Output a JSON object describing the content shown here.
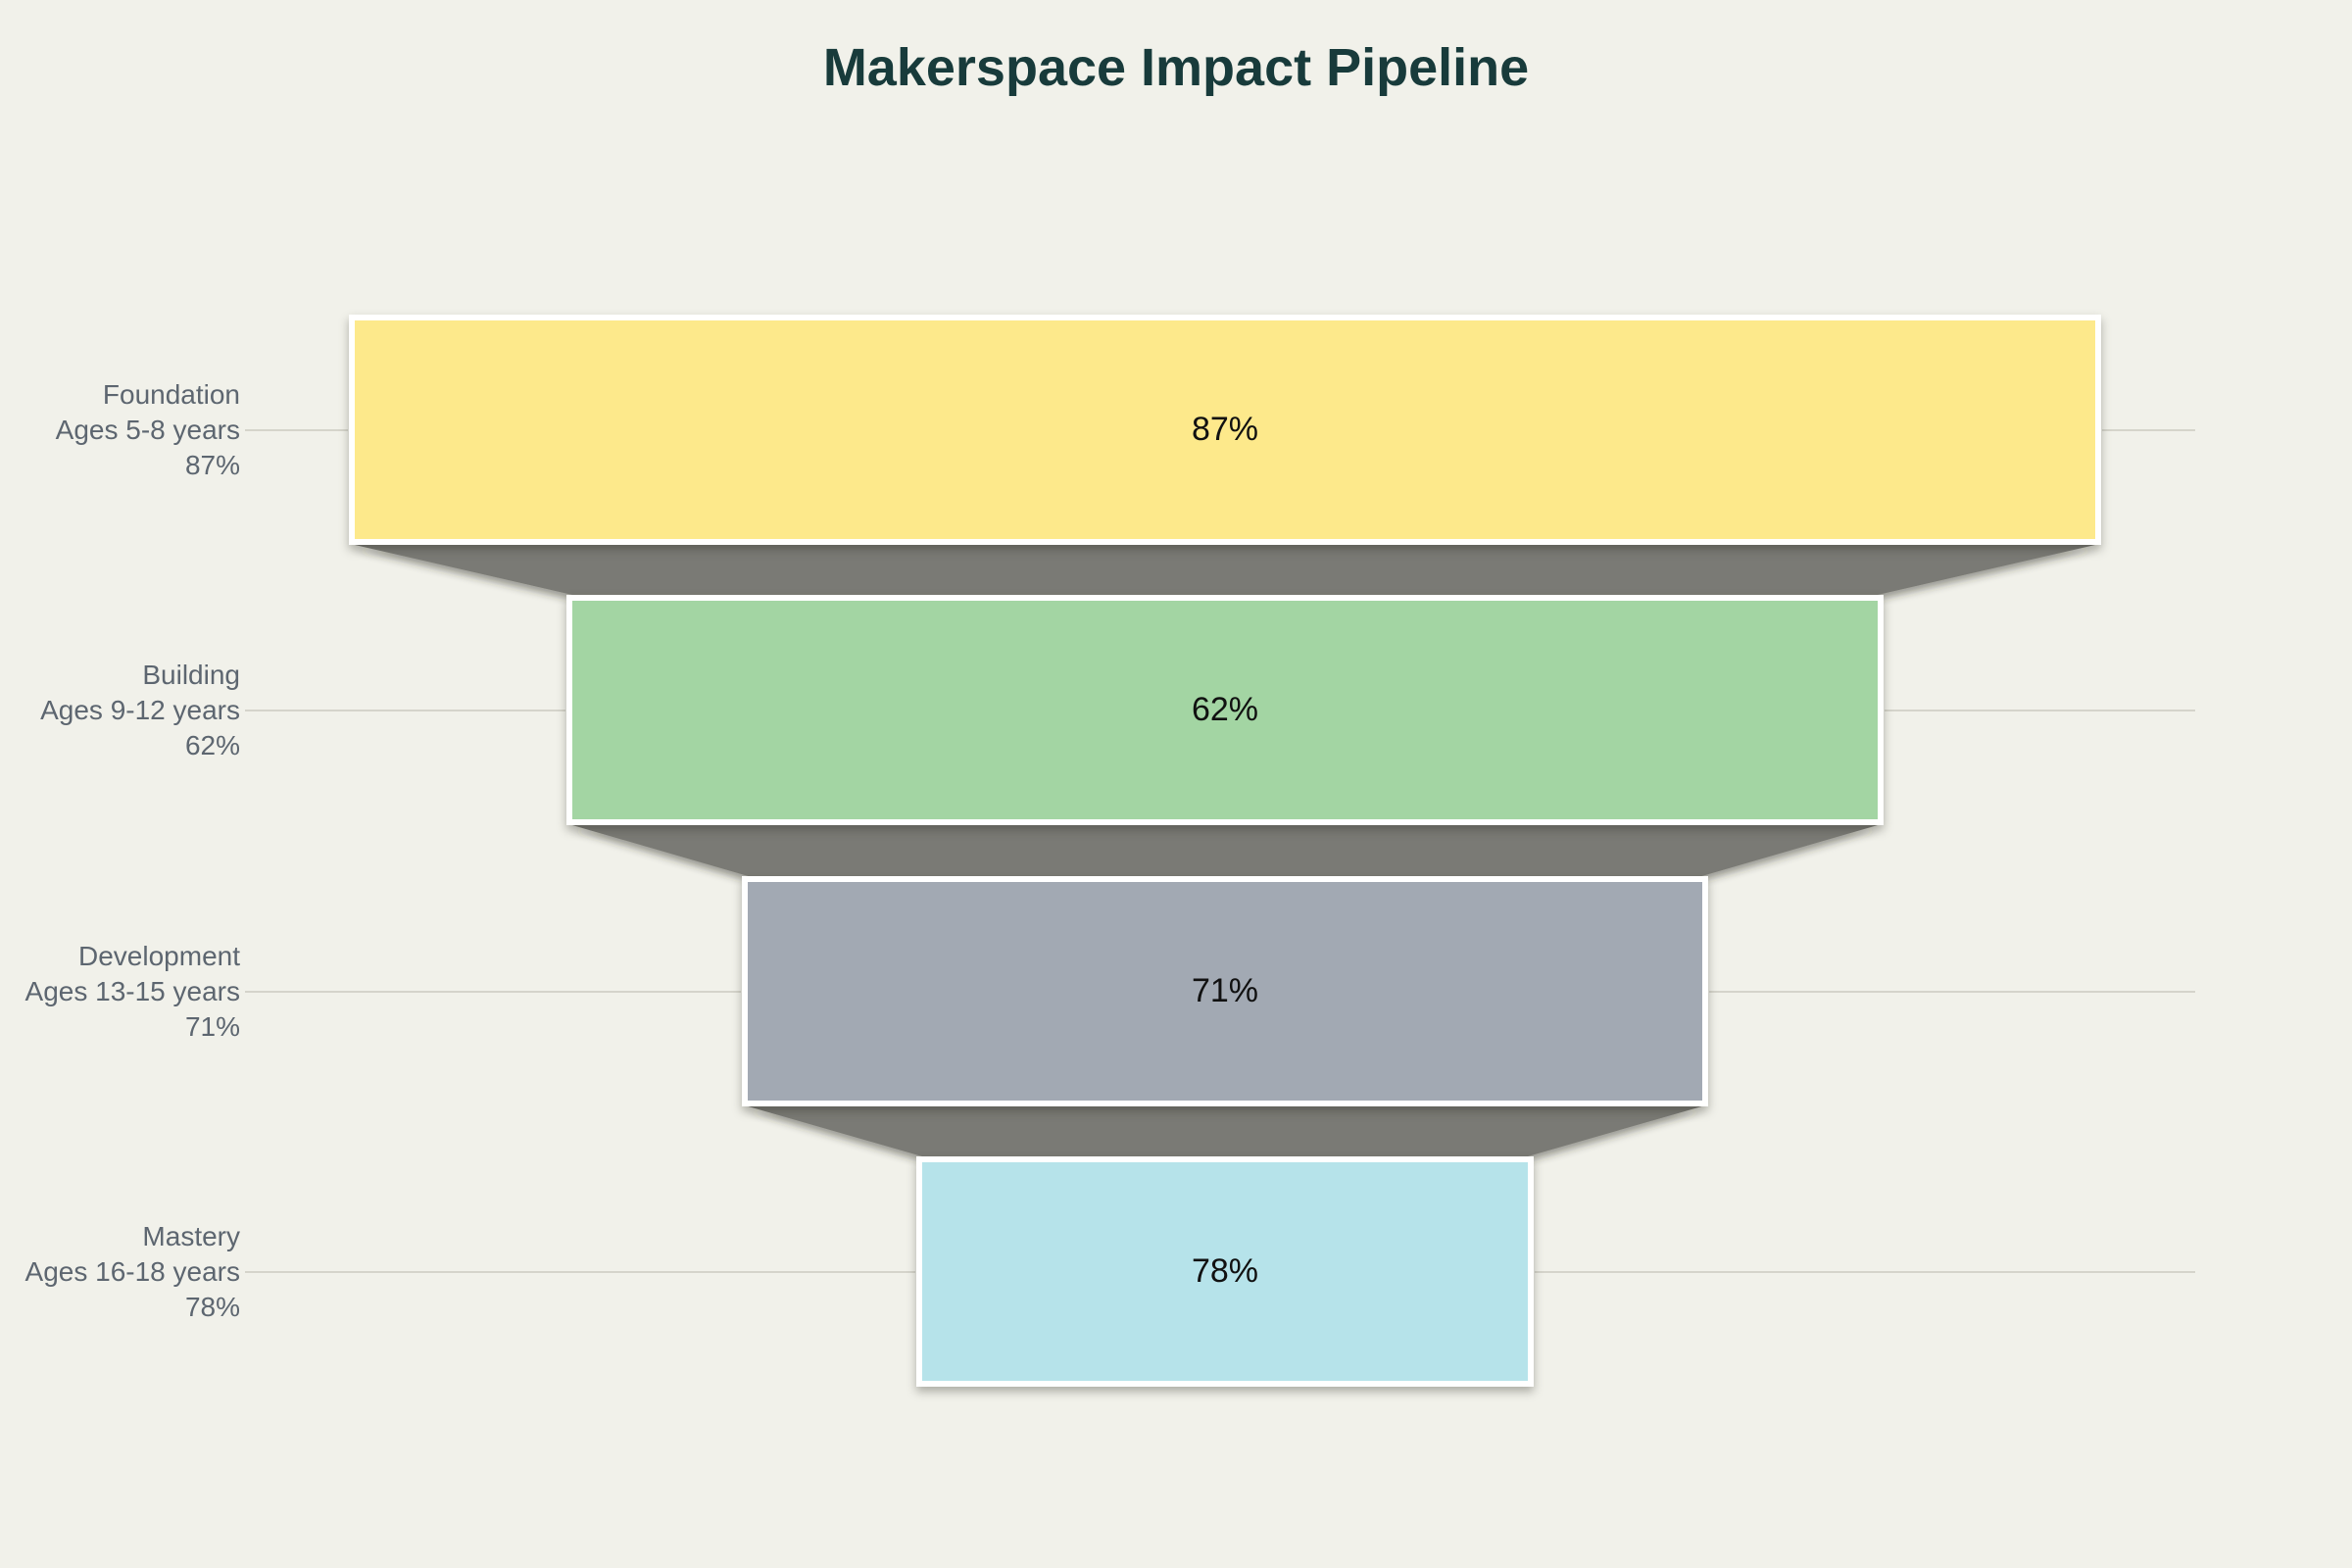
{
  "chart_data": {
    "type": "funnel",
    "title": "Makerspace Impact Pipeline",
    "stages": [
      {
        "label": "Foundation",
        "sublabel": "Ages 5-8 years",
        "value": 87,
        "value_label": "87%",
        "color": "#fde98b"
      },
      {
        "label": "Building",
        "sublabel": "Ages 9-12 years",
        "value": 62,
        "value_label": "62%",
        "color": "#a3d5a3"
      },
      {
        "label": "Development",
        "sublabel": "Ages 13-15 years",
        "value": 71,
        "value_label": "71%",
        "color": "#a2a9b3"
      },
      {
        "label": "Mastery",
        "sublabel": "Ages 16-18 years",
        "value": 78,
        "value_label": "78%",
        "color": "#b6e3ea"
      }
    ],
    "layout": {
      "orientation": "top-to-bottom",
      "labels_position": "left",
      "bar_width_fractions": [
        1.0,
        0.75,
        0.548,
        0.348
      ],
      "background_color": "#f1f1ea",
      "title_color": "#183b3b",
      "label_color": "#5d6670",
      "value_text_color": "#111111",
      "connector_color": "#7a7a74",
      "leader_line_color": "#d5d4cb",
      "bar_border_color": "#ffffff"
    }
  }
}
